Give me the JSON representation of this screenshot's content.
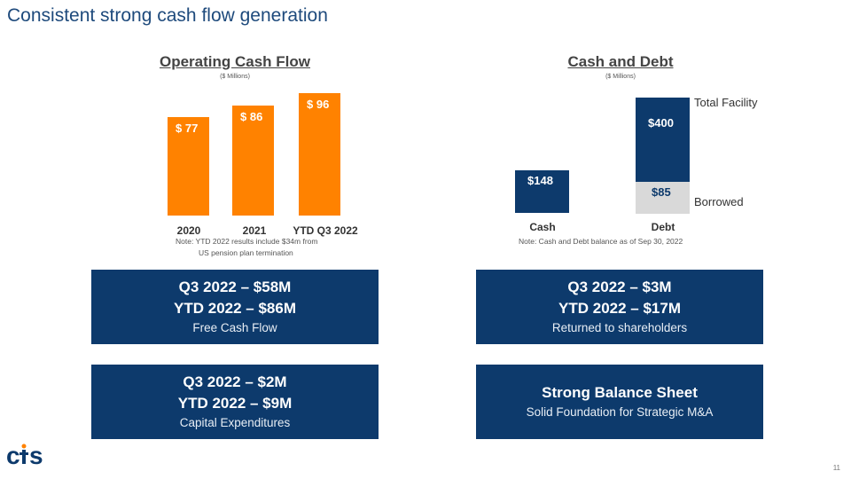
{
  "slide": {
    "title": "Consistent strong cash flow generation",
    "page_number": "11",
    "logo_text": "cts"
  },
  "operating_cash_flow": {
    "title": "Operating Cash Flow",
    "units": "($ Millions)",
    "note_line1": "Note: YTD 2022 results include $34m from",
    "note_line2": "US pension plan termination",
    "bar_labels": [
      "$ 77",
      "$ 86",
      "$ 96"
    ],
    "categories": [
      "2020",
      "2021",
      "YTD Q3 2022"
    ]
  },
  "cash_and_debt": {
    "title": "Cash and Debt",
    "units": "($ Millions)",
    "note": "Note: Cash and Debt balance as of Sep 30, 2022",
    "categories": [
      "Cash",
      "Debt"
    ],
    "cash_label": "$148",
    "facility_label": "$400",
    "borrowed_label": "$85",
    "facility_side_label": "Total Facility",
    "borrowed_side_label": "Borrowed"
  },
  "boxes": {
    "fcf": {
      "line1": "Q3 2022 – $58M",
      "line2": "YTD 2022 – $86M",
      "caption": "Free Cash Flow"
    },
    "returned": {
      "line1": "Q3 2022 – $3M",
      "line2": "YTD 2022 – $17M",
      "caption": "Returned to shareholders"
    },
    "capex": {
      "line1": "Q3 2022 – $2M",
      "line2": "YTD 2022 – $9M",
      "caption": "Capital Expenditures"
    },
    "balance": {
      "line1": "Strong Balance Sheet",
      "caption": "Solid Foundation for Strategic M&A"
    }
  },
  "colors": {
    "title": "#1e4a7c",
    "orange": "#ff8200",
    "navy": "#0d3a6c",
    "grey": "#d9d9d9"
  },
  "chart_data": [
    {
      "type": "bar",
      "title": "Operating Cash Flow",
      "subtitle": "($ Millions)",
      "categories": [
        "2020",
        "2021",
        "YTD Q3 2022"
      ],
      "values": [
        77,
        86,
        96
      ],
      "data_labels": [
        "$ 77",
        "$ 86",
        "$ 96"
      ],
      "ylim": [
        0,
        100
      ],
      "grid": false
    },
    {
      "type": "bar",
      "title": "Cash and Debt",
      "subtitle": "($ Millions)",
      "categories": [
        "Cash",
        "Debt"
      ],
      "series": [
        {
          "name": "Borrowed",
          "values": [
            null,
            85
          ]
        },
        {
          "name": "Total Facility",
          "values": [
            null,
            400
          ]
        }
      ],
      "cash_value": 148,
      "ylim": [
        0,
        400
      ],
      "grid": false
    }
  ]
}
